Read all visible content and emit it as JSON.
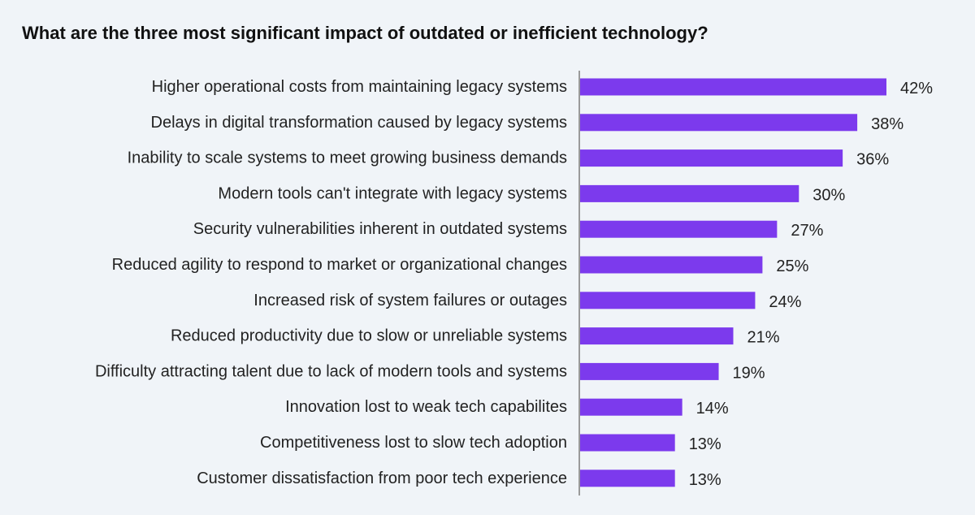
{
  "chart_data": {
    "type": "bar",
    "orientation": "horizontal",
    "title": "What are the three most significant impact of outdated or inefficient technology?",
    "xlabel": "",
    "ylabel": "",
    "xlim": [
      0,
      42
    ],
    "grid": false,
    "bar_color": "#7c3aed",
    "background": "#f0f4f8",
    "categories": [
      "Higher operational costs from maintaining legacy systems",
      "Delays in digital transformation caused by legacy systems",
      "Inability to scale systems to meet growing business demands",
      "Modern tools can't integrate with legacy systems",
      "Security vulnerabilities inherent in outdated systems",
      "Reduced agility to respond to market or organizational changes",
      "Increased risk of system failures or outages",
      "Reduced productivity due to slow or unreliable systems",
      "Difficulty attracting talent due to lack of modern tools and systems",
      "Innovation lost to weak tech capabilites",
      "Competitiveness lost to slow tech adoption",
      "Customer dissatisfaction from poor tech experience"
    ],
    "values": [
      42,
      38,
      36,
      30,
      27,
      25,
      24,
      21,
      19,
      14,
      13,
      13
    ],
    "value_labels": [
      "42%",
      "38%",
      "36%",
      "30%",
      "27%",
      "25%",
      "24%",
      "21%",
      "19%",
      "14%",
      "13%",
      "13%"
    ]
  }
}
